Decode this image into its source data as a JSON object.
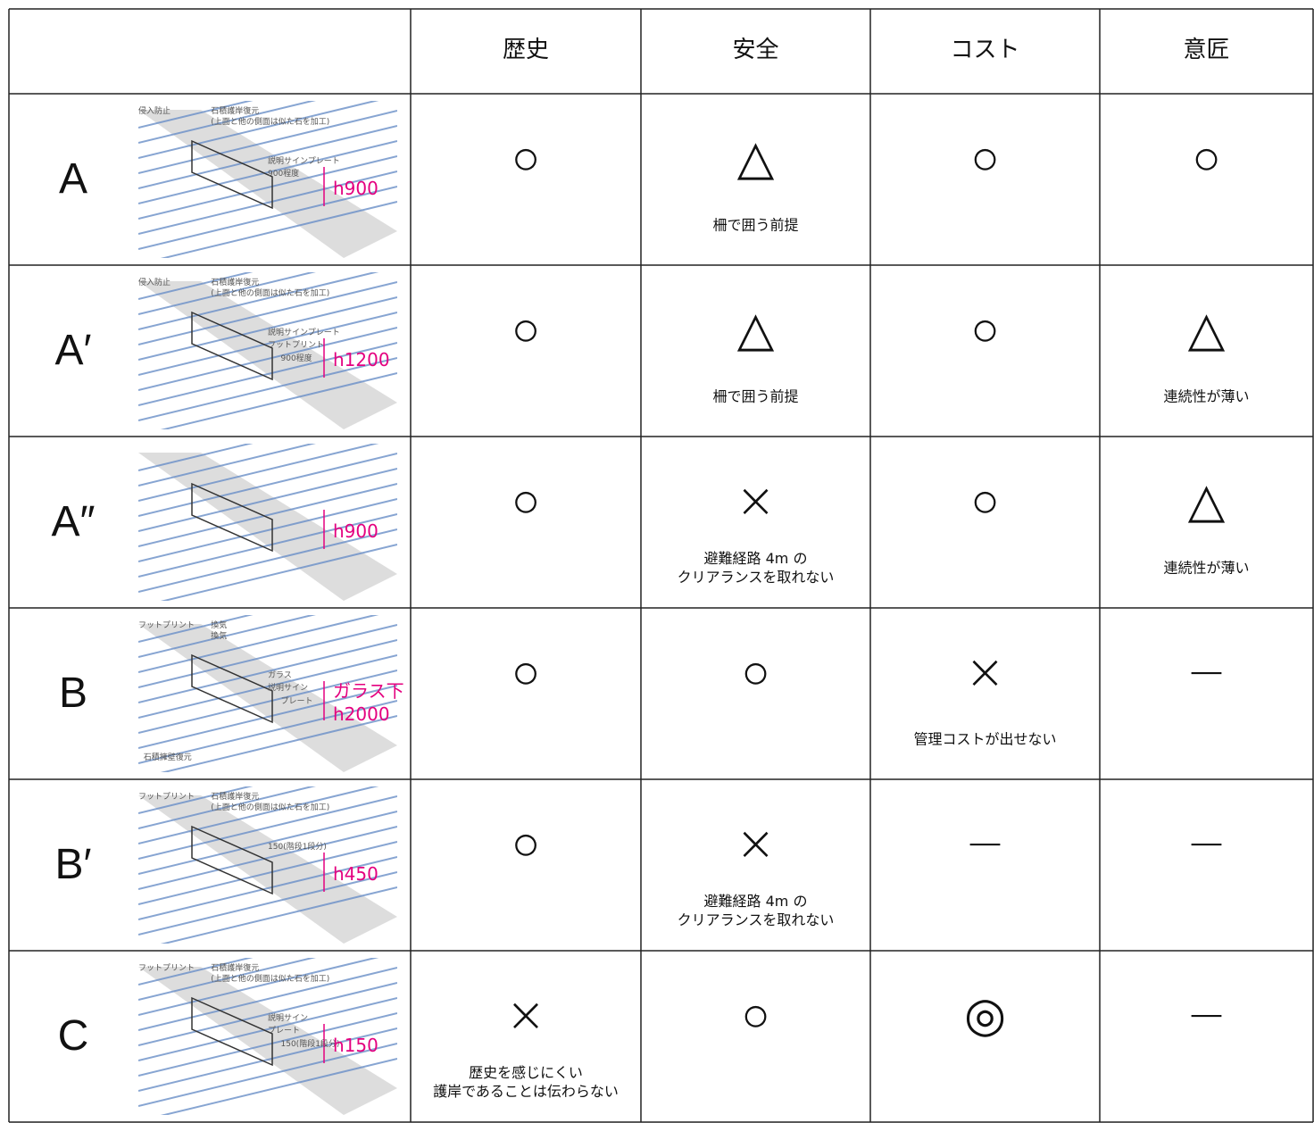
{
  "table": {
    "columns": [
      "歴史",
      "安全",
      "コスト",
      "意匠"
    ],
    "rows": [
      {
        "label": "A",
        "sketch": {
          "notes": [
            "侵入防止",
            "石積護岸復元",
            "(上面と他の側面は似た石を加工)",
            "説明サインプレート",
            "900程度"
          ],
          "height": "h900"
        },
        "cells": [
          {
            "mark": "○"
          },
          {
            "mark": "△",
            "note": "柵で囲う前提"
          },
          {
            "mark": "○"
          },
          {
            "mark": "○"
          }
        ]
      },
      {
        "label": "A′",
        "sketch": {
          "notes": [
            "侵入防止",
            "石積護岸復元",
            "(上面と他の側面は似た石を加工)",
            "説明サインプレート",
            "フットプリント",
            "900程度"
          ],
          "height": "h1200"
        },
        "cells": [
          {
            "mark": "○"
          },
          {
            "mark": "△",
            "note": "柵で囲う前提"
          },
          {
            "mark": "○"
          },
          {
            "mark": "△",
            "note": "連続性が薄い"
          }
        ]
      },
      {
        "label": "A″",
        "sketch": {
          "notes": [],
          "height": "h900"
        },
        "cells": [
          {
            "mark": "○"
          },
          {
            "mark": "×",
            "note": "避難経路 4m の\nクリアランスを取れない"
          },
          {
            "mark": "○"
          },
          {
            "mark": "△",
            "note": "連続性が薄い"
          }
        ]
      },
      {
        "label": "B",
        "sketch": {
          "notes": [
            "フットプリント",
            "換気",
            "換気",
            "ガラス",
            "説明サイン",
            "プレート",
            "石積擁壁復元"
          ],
          "height": "ガラス下\nh2000"
        },
        "cells": [
          {
            "mark": "○"
          },
          {
            "mark": "○"
          },
          {
            "mark": "×",
            "note": "管理コストが出せない"
          },
          {
            "mark": "−"
          }
        ]
      },
      {
        "label": "B′",
        "sketch": {
          "notes": [
            "フットプリント",
            "石積護岸復元",
            "(上面と他の側面は似た石を加工)",
            "150(階段1段分)"
          ],
          "height": "h450"
        },
        "cells": [
          {
            "mark": "○"
          },
          {
            "mark": "×",
            "note": "避難経路 4m の\nクリアランスを取れない"
          },
          {
            "mark": "−"
          },
          {
            "mark": "−"
          }
        ]
      },
      {
        "label": "C",
        "sketch": {
          "notes": [
            "フットプリント",
            "石積護岸復元",
            "(上面と他の側面は似た石を加工)",
            "説明サイン",
            "プレート",
            "150(階段1段分)"
          ],
          "height": "h150"
        },
        "cells": [
          {
            "mark": "×",
            "note": "歴史を感じにくい\n護岸であることは伝わらない"
          },
          {
            "mark": "○"
          },
          {
            "mark": "◎"
          },
          {
            "mark": "−"
          }
        ]
      }
    ]
  }
}
